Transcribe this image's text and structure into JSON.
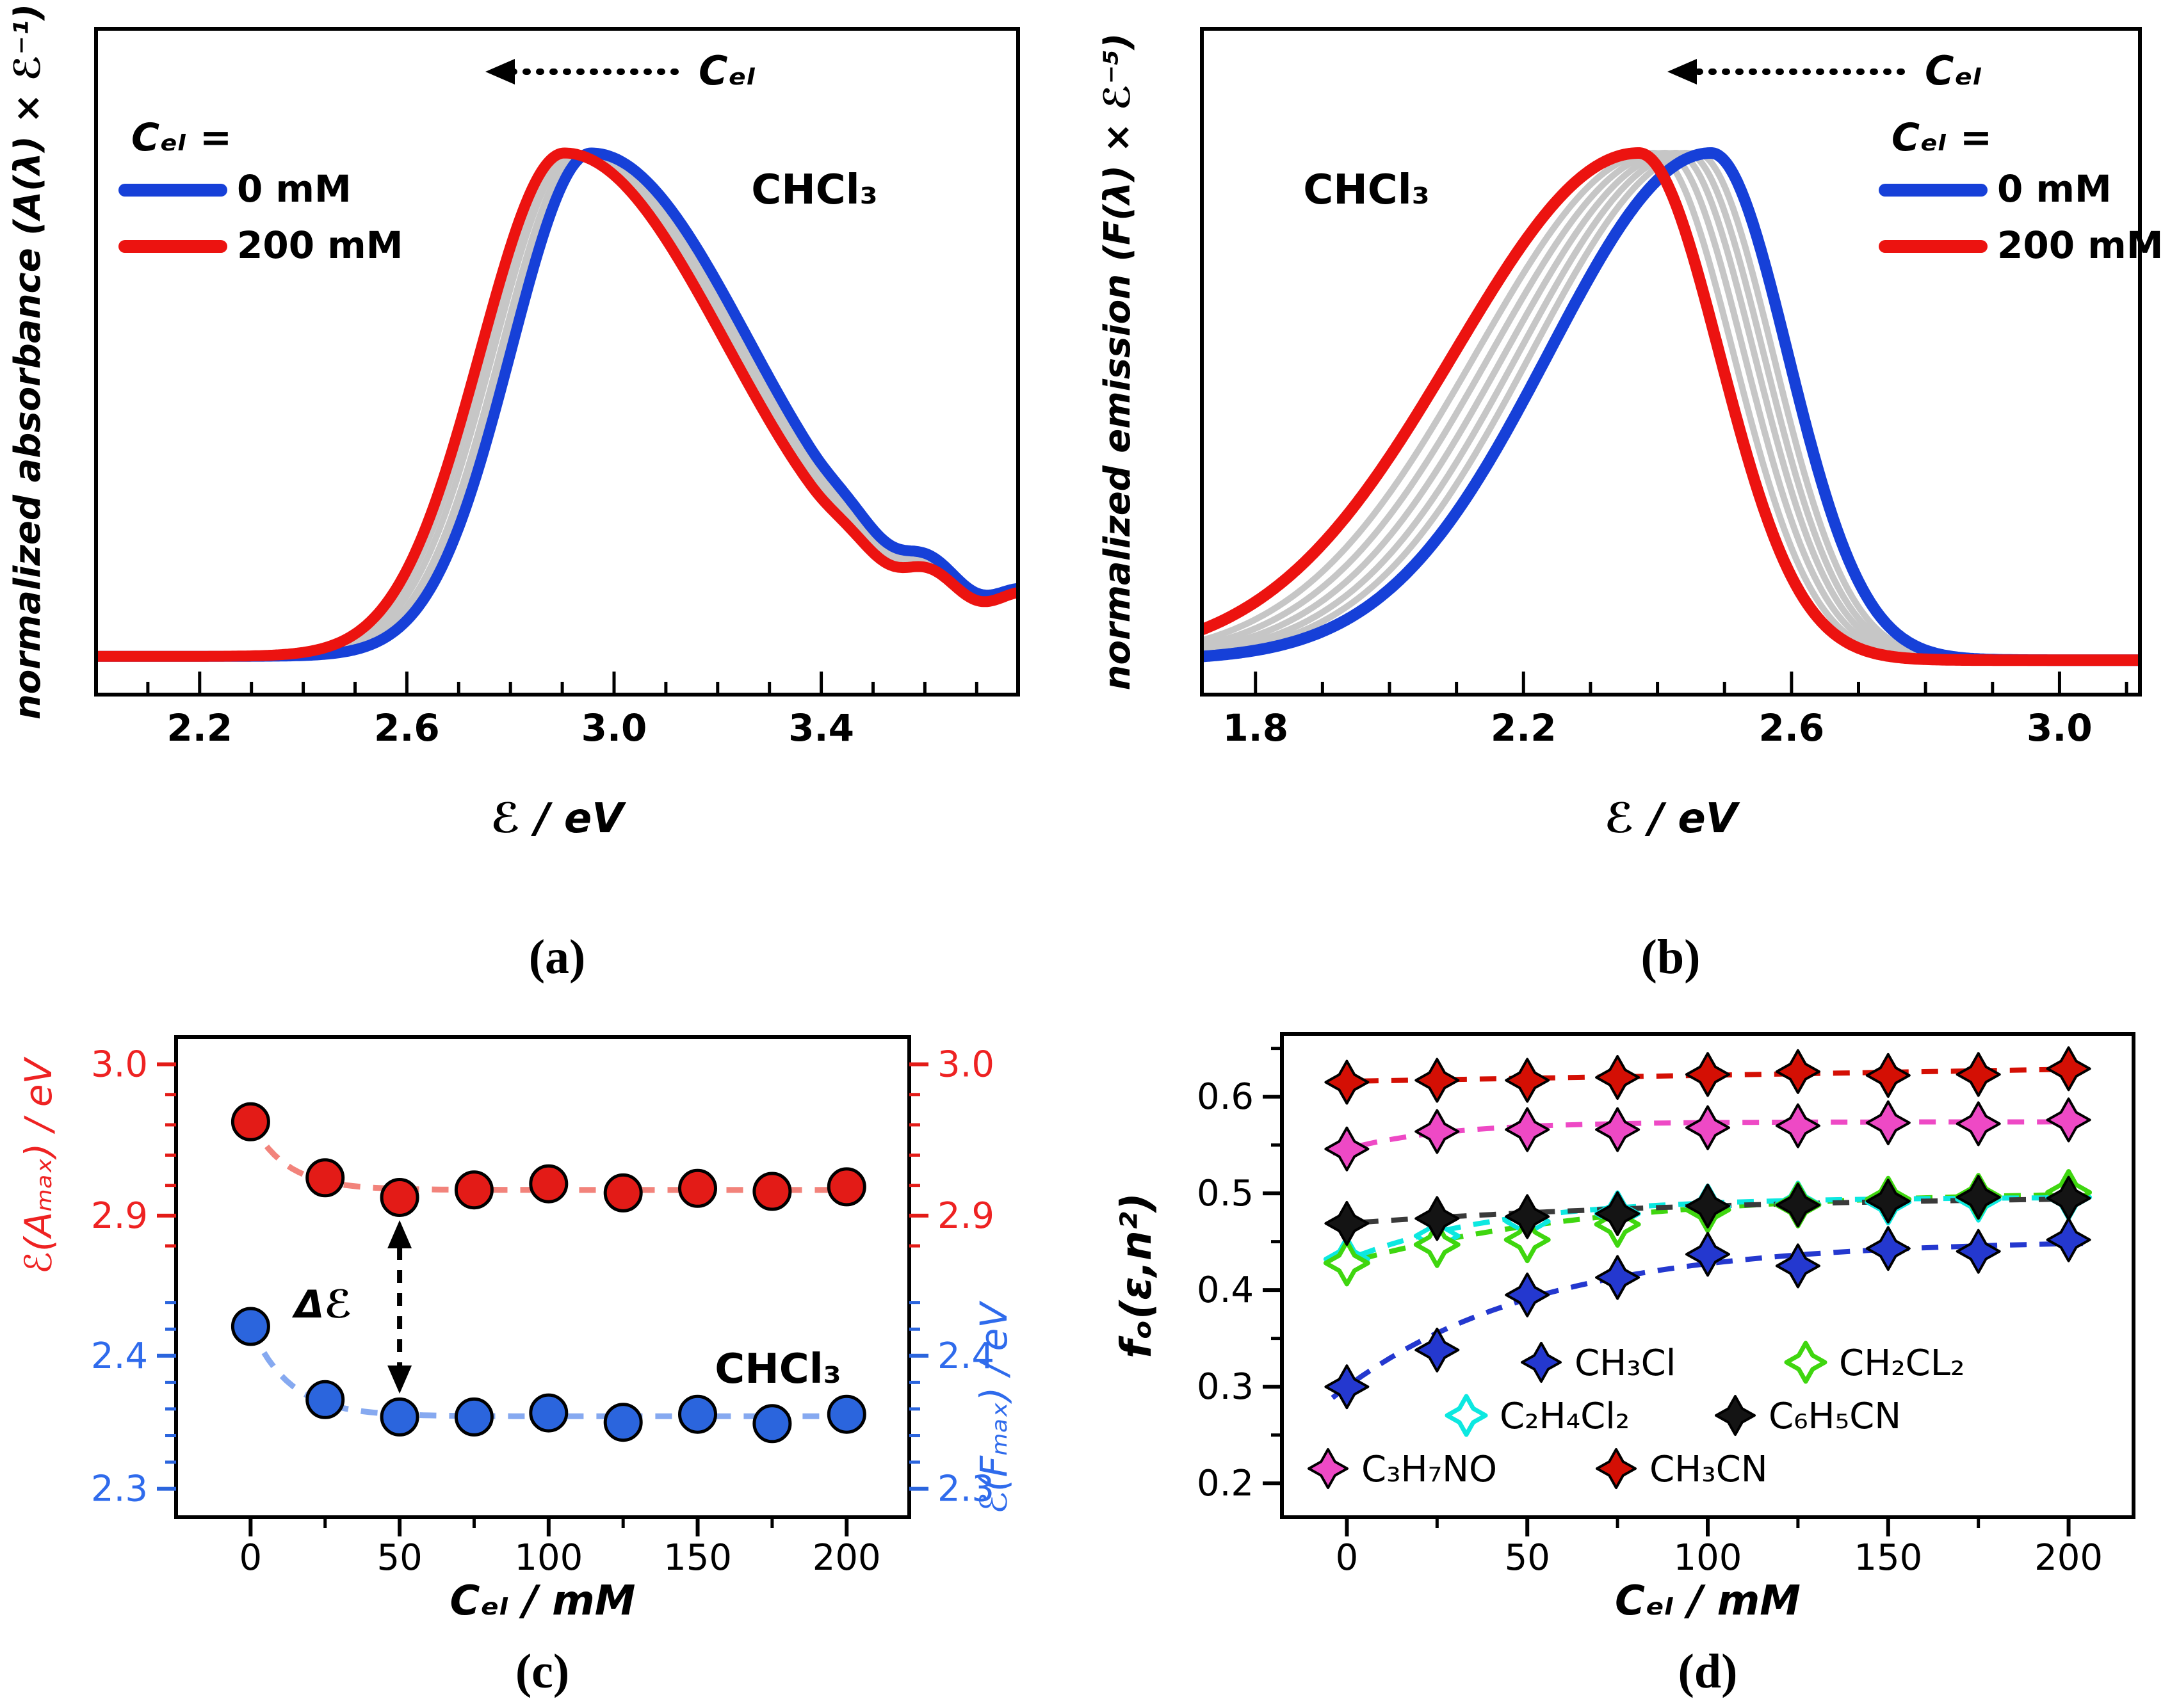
{
  "captions": {
    "a": "(a)",
    "b": "(b)",
    "c": "(c)",
    "d": "(d)"
  },
  "chart_data": [
    {
      "id": "a",
      "type": "line",
      "subtype": "absorption-spectra",
      "xlabel": "ℰ / eV",
      "ylabel": "normalized absorbance (A(λ) × ℰ⁻¹)",
      "xlim": [
        2.0,
        3.78
      ],
      "xticks": [
        2.2,
        2.6,
        3.0,
        3.4
      ],
      "xtick_labels": [
        "2.2",
        "2.6",
        "3.0",
        "3.4"
      ],
      "ylim": [
        0,
        1.05
      ],
      "grid": false,
      "solvent": "CHCl₃",
      "arrow_label": "Cₑₗ",
      "legend_title": "Cₑₗ =",
      "legend": [
        {
          "label": "0 mM",
          "color": "#1640d8"
        },
        {
          "label": "200 mM",
          "color": "#ec1310"
        }
      ],
      "baseline": 0.035,
      "tail_level": 0.085,
      "series": [
        {
          "name": "intermediate-1",
          "color": "#c6c6c6",
          "lw": 10,
          "peak": 2.915,
          "sl": 0.16,
          "sr": 0.32
        },
        {
          "name": "intermediate-2",
          "color": "#c6c6c6",
          "lw": 10,
          "peak": 2.925,
          "sl": 0.158,
          "sr": 0.32
        },
        {
          "name": "intermediate-3",
          "color": "#c6c6c6",
          "lw": 10,
          "peak": 2.938,
          "sl": 0.157,
          "sr": 0.318
        },
        {
          "name": "intermediate-4",
          "color": "#c6c6c6",
          "lw": 10,
          "peak": 2.948,
          "sl": 0.156,
          "sr": 0.318
        },
        {
          "name": "0 mM",
          "color": "#1640d8",
          "lw": 17,
          "peak": 2.956,
          "sl": 0.155,
          "sr": 0.315
        },
        {
          "name": "200 mM",
          "color": "#ec1310",
          "lw": 17,
          "peak": 2.904,
          "sl": 0.162,
          "sr": 0.32
        }
      ]
    },
    {
      "id": "b",
      "type": "line",
      "subtype": "emission-spectra",
      "xlabel": "ℰ / eV",
      "ylabel": "normalized emission (F(λ) × ℰ⁻⁵)",
      "xlim": [
        1.72,
        3.12
      ],
      "xticks": [
        1.8,
        2.2,
        2.6,
        3.0
      ],
      "xtick_labels": [
        "1.8",
        "2.2",
        "2.6",
        "3.0"
      ],
      "ylim": [
        0,
        1.05
      ],
      "grid": false,
      "solvent": "CHCl₃",
      "arrow_label": "Cₑₗ",
      "legend_title": "Cₑₗ =",
      "legend": [
        {
          "label": "0 mM",
          "color": "#1640d8"
        },
        {
          "label": "200 mM",
          "color": "#ec1310"
        }
      ],
      "baseline": 0.028,
      "tail_level": 0,
      "series": [
        {
          "name": "intermediate-1",
          "color": "#c6c6c6",
          "lw": 10,
          "peak": 2.395,
          "sl": 0.265,
          "sr": 0.118
        },
        {
          "name": "intermediate-2",
          "color": "#c6c6c6",
          "lw": 10,
          "peak": 2.412,
          "sl": 0.26,
          "sr": 0.117
        },
        {
          "name": "intermediate-3",
          "color": "#c6c6c6",
          "lw": 10,
          "peak": 2.428,
          "sl": 0.255,
          "sr": 0.116
        },
        {
          "name": "intermediate-4",
          "color": "#c6c6c6",
          "lw": 10,
          "peak": 2.443,
          "sl": 0.25,
          "sr": 0.115
        },
        {
          "name": "intermediate-5",
          "color": "#c6c6c6",
          "lw": 10,
          "peak": 2.458,
          "sl": 0.246,
          "sr": 0.114
        },
        {
          "name": "0 mM",
          "color": "#1640d8",
          "lw": 18,
          "peak": 2.48,
          "sl": 0.242,
          "sr": 0.114
        },
        {
          "name": "200 mM",
          "color": "#ec1310",
          "lw": 18,
          "peak": 2.372,
          "sl": 0.275,
          "sr": 0.12
        }
      ]
    },
    {
      "id": "c",
      "type": "scatter",
      "subtype": "dual-axis-peak-positions",
      "xlabel": "Cₑₗ / mM",
      "xlim": [
        -25,
        221
      ],
      "xticks": [
        0,
        50,
        100,
        150,
        200
      ],
      "xtick_labels": [
        "0",
        "50",
        "100",
        "150",
        "200"
      ],
      "x": [
        0,
        25,
        50,
        75,
        100,
        125,
        150,
        175,
        200
      ],
      "solvent": "CHCl₃",
      "delta_label": "Δℰ",
      "red": {
        "axis_label": "ℰ(Aₘₐₓ) / eV",
        "color": "#e31b17",
        "label_color": "#ee2222",
        "trend_color": "#f2837b",
        "scale": [
          2.872,
          3.018
        ],
        "ticks": [
          2.9,
          3.0
        ],
        "tick_labels": [
          "2.9",
          "3.0"
        ],
        "minor": [
          2.88,
          2.92,
          2.94,
          2.96,
          2.98
        ],
        "values": [
          2.962,
          2.925,
          2.912,
          2.917,
          2.921,
          2.915,
          2.918,
          2.916,
          2.919
        ],
        "trend": {
          "base": 2.917,
          "amp": 0.045,
          "tau": 12
        }
      },
      "blue": {
        "axis_label": "ℰ(Fₘₐₓ) / eV",
        "color": "#2b65dd",
        "label_color": "#2f6bec",
        "trend_color": "#86a9f0",
        "scale": [
          2.282,
          2.448
        ],
        "ticks": [
          2.3,
          2.4
        ],
        "tick_labels": [
          "2.3",
          "2.4"
        ],
        "minor": [
          2.32,
          2.34,
          2.36,
          2.38,
          2.42,
          2.44
        ],
        "values": [
          2.422,
          2.367,
          2.354,
          2.354,
          2.357,
          2.35,
          2.356,
          2.349,
          2.356
        ],
        "trend": {
          "base": 2.3545,
          "amp": 0.0675,
          "tau": 13
        }
      }
    },
    {
      "id": "d",
      "type": "scatter",
      "subtype": "polarity-function",
      "xlabel": "Cₑₗ / mM",
      "ylabel": "fₒ(ε,n²)",
      "xlim": [
        -18,
        218
      ],
      "xticks": [
        0,
        50,
        100,
        150,
        200
      ],
      "xtick_labels": [
        "0",
        "50",
        "100",
        "150",
        "200"
      ],
      "ylim": [
        0.165,
        0.665
      ],
      "yticks": [
        0.2,
        0.3,
        0.4,
        0.5,
        0.6
      ],
      "ytick_labels": [
        "0.2",
        "0.3",
        "0.4",
        "0.5",
        "0.6"
      ],
      "yminor": [
        0.25,
        0.35,
        0.45,
        0.55,
        0.65
      ],
      "x": [
        0,
        25,
        50,
        75,
        100,
        125,
        150,
        175,
        200
      ],
      "series": [
        {
          "name": "CH₃Cl",
          "color": "#2438cf",
          "open": false,
          "values": [
            0.3,
            0.338,
            0.395,
            0.413,
            0.437,
            0.425,
            0.443,
            0.44,
            0.452
          ],
          "trend": {
            "base": 0.452,
            "amp": -0.152,
            "tau": 55
          }
        },
        {
          "name": "CH₂CL₂",
          "color": "#3fd60f",
          "open": true,
          "values": [
            0.428,
            0.447,
            0.452,
            0.468,
            0.483,
            0.488,
            0.494,
            0.497,
            0.501
          ],
          "trend": {
            "base": 0.503,
            "amp": -0.075,
            "tau": 70
          }
        },
        {
          "name": "C₂H₄Cl₂",
          "color": "#0ce8e0",
          "open": true,
          "values": [
            0.432,
            0.456,
            0.471,
            0.479,
            0.486,
            0.489,
            0.491,
            0.494,
            0.496
          ],
          "trend": {
            "base": 0.496,
            "amp": -0.065,
            "tau": 42
          }
        },
        {
          "name": "C₆H₅CN",
          "color": "#141414",
          "open": false,
          "trend_color": "#3a3a3a",
          "values": [
            0.469,
            0.474,
            0.476,
            0.479,
            0.487,
            0.488,
            0.492,
            0.496,
            0.495
          ],
          "trend": {
            "base": 0.499,
            "amp": -0.03,
            "tau": 110
          }
        },
        {
          "name": "C₃H₇NO",
          "color": "#ee49c5",
          "open": false,
          "values": [
            0.546,
            0.564,
            0.566,
            0.566,
            0.568,
            0.57,
            0.573,
            0.572,
            0.576
          ],
          "trend": {
            "base": 0.574,
            "amp": -0.028,
            "tau": 28
          }
        },
        {
          "name": "CH₃CN",
          "color": "#d40f04",
          "open": false,
          "values": [
            0.615,
            0.617,
            0.617,
            0.62,
            0.623,
            0.626,
            0.622,
            0.623,
            0.629
          ],
          "trend": {
            "base": 0.616,
            "slope": 6.2e-05
          }
        }
      ]
    }
  ]
}
